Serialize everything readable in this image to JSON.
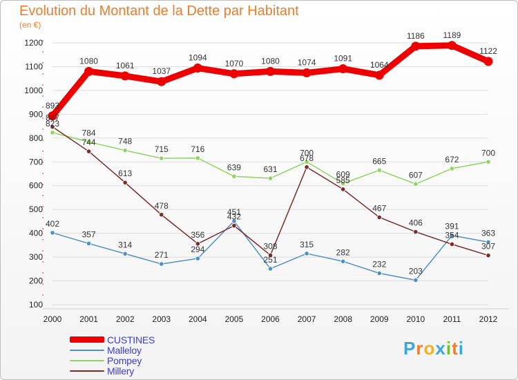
{
  "header": {
    "title": "Evolution du Montant de la Dette par Habitant",
    "subtitle": "(en €)"
  },
  "brand": {
    "letters": [
      "P",
      "r",
      "o",
      "x",
      "i",
      "t",
      "i"
    ],
    "colors": [
      "#3aa7dc",
      "#f07b2c",
      "#f2b21c",
      "#3aa7dc",
      "#76bd2e",
      "#f07b2c",
      "#3aa7dc"
    ]
  },
  "chart_data": {
    "type": "line",
    "title": "Evolution du Montant de la Dette par Habitant",
    "subtitle": "(en €)",
    "xlabel": "",
    "ylabel": "",
    "ylim": [
      100,
      1200
    ],
    "yticks": [
      100,
      200,
      300,
      400,
      500,
      600,
      700,
      800,
      900,
      1000,
      1100,
      1200
    ],
    "x": [
      "2000",
      "2001",
      "2002",
      "2003",
      "2004",
      "2005",
      "2006",
      "2007",
      "2008",
      "2009",
      "2010",
      "2011",
      "2012"
    ],
    "legend_position": "bottom-left",
    "series": [
      {
        "name": "CUSTINES",
        "color": "#ee0000",
        "values": [
          893,
          1080,
          1061,
          1037,
          1094,
          1070,
          1080,
          1074,
          1091,
          1064,
          1186,
          1189,
          1122
        ]
      },
      {
        "name": "Malleloy",
        "color": "#4f8fc6",
        "values": [
          402,
          357,
          314,
          271,
          294,
          451,
          251,
          315,
          282,
          232,
          203,
          391,
          363
        ]
      },
      {
        "name": "Pompey",
        "color": "#8fd45f",
        "values": [
          823,
          784,
          748,
          715,
          716,
          639,
          631,
          700,
          609,
          665,
          607,
          672,
          700
        ]
      },
      {
        "name": "Millery",
        "color": "#7a2a2a",
        "values": [
          847,
          744,
          613,
          478,
          356,
          432,
          308,
          678,
          585,
          467,
          406,
          354,
          307
        ]
      }
    ]
  }
}
